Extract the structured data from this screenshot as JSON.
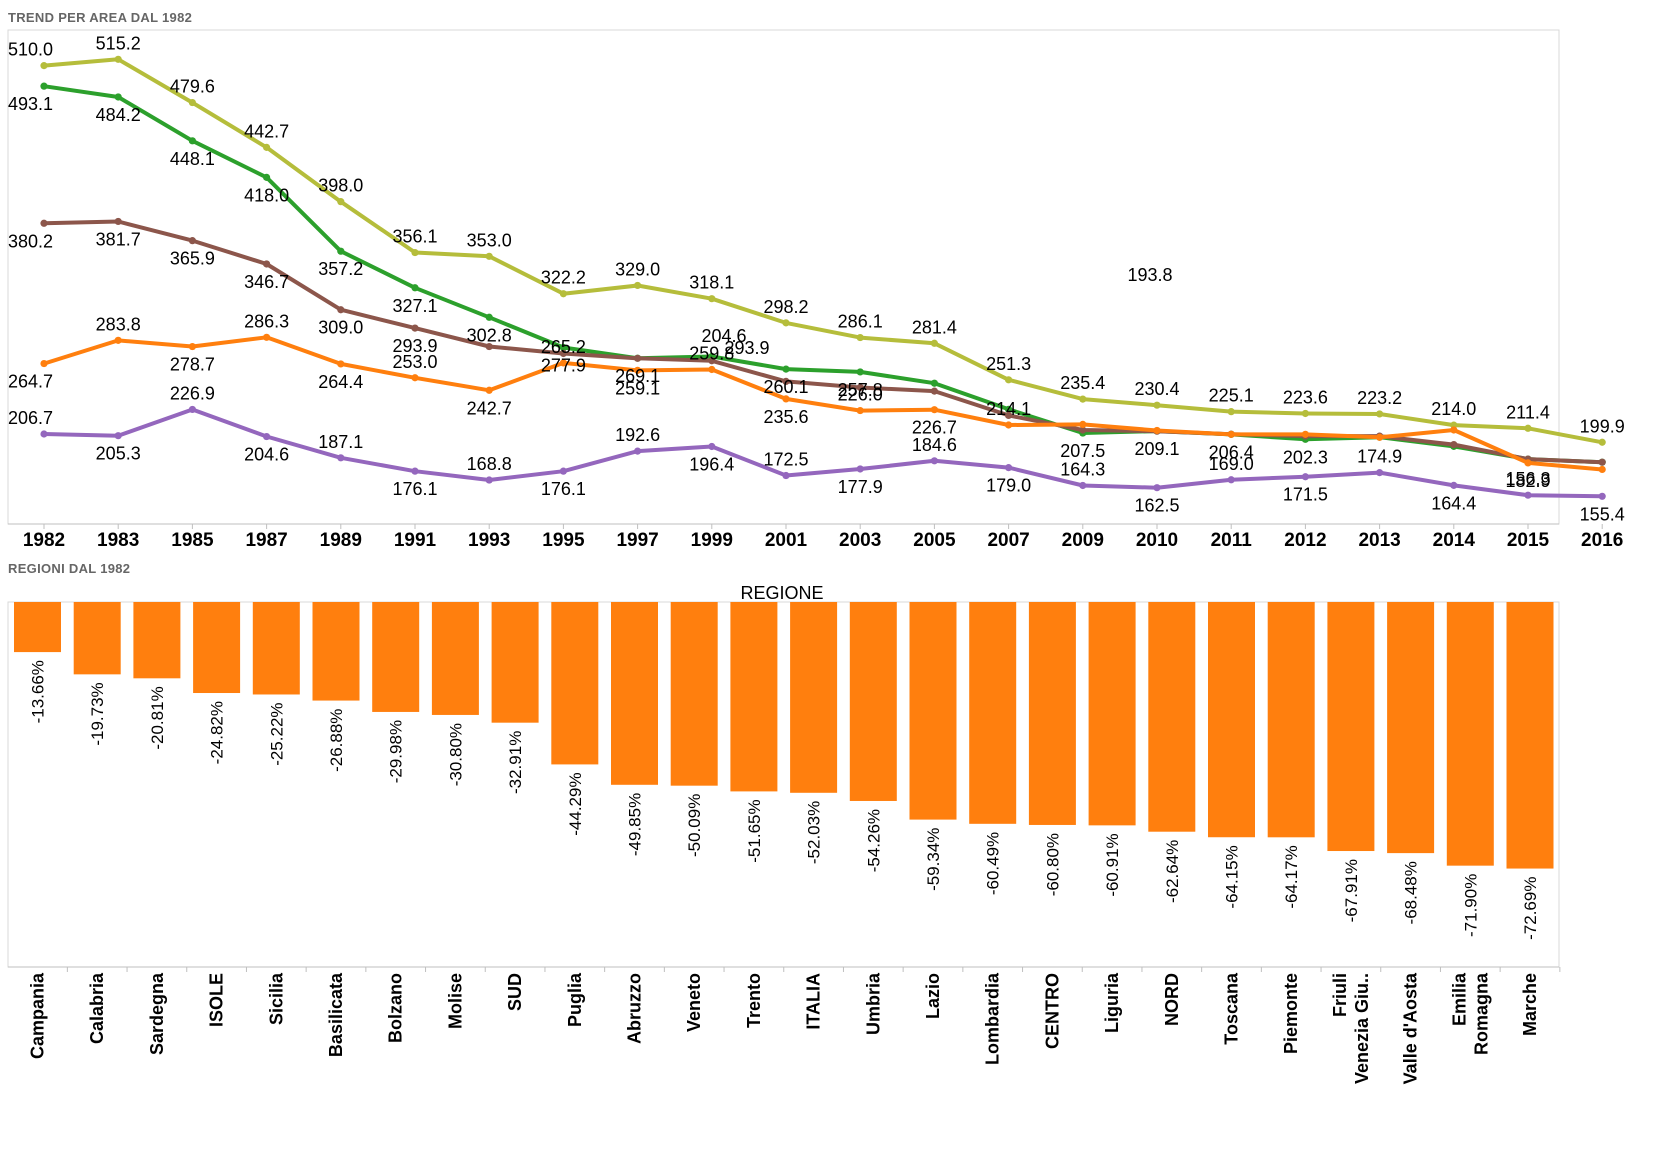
{
  "panels": {
    "top_title": "TREND PER AREA DAL 1982",
    "bottom_title": "REGIONI DAL 1982"
  },
  "chart_data": [
    {
      "type": "line",
      "title": "TREND PER AREA DAL 1982",
      "x": [
        "1982",
        "1983",
        "1985",
        "1987",
        "1989",
        "1991",
        "1993",
        "1995",
        "1997",
        "1999",
        "2001",
        "2003",
        "2005",
        "2007",
        "2009",
        "2010",
        "2011",
        "2012",
        "2013",
        "2014",
        "2015",
        "2016"
      ],
      "ylim": [
        140,
        530
      ],
      "grid": false,
      "legend": "none",
      "series": [
        {
          "color": "#b5bd3b",
          "values": [
            510.0,
            515.2,
            479.6,
            442.7,
            398.0,
            356.1,
            353.0,
            322.2,
            329.0,
            318.1,
            298.2,
            286.1,
            281.4,
            251.3,
            235.4,
            230.4,
            225.1,
            223.6,
            223.2,
            214.0,
            211.4,
            199.9
          ],
          "labels": [
            "510.0",
            "515.2",
            "479.6",
            "442.7",
            "398.0",
            "356.1",
            "353.0",
            "322.2",
            "329.0",
            "318.1",
            "298.2",
            "286.1",
            "281.4",
            "251.3",
            "235.4",
            "230.4",
            "225.1",
            "223.6",
            "223.2",
            "214.0",
            "211.4",
            "199.9"
          ]
        },
        {
          "color": "#2ca02c",
          "values": [
            493.1,
            484.2,
            448.1,
            418.0,
            357.2,
            327.1,
            302.8,
            277.9,
            269.1,
            270.5,
            260.1,
            257.8,
            248.5,
            227.0,
            207.5,
            209.1,
            206.4,
            202.3,
            204.1,
            196.5,
            186.0,
            183.5
          ],
          "labels": [
            "493.1",
            "484.2",
            "448.1",
            "418.0",
            "357.2",
            "327.1",
            "302.8",
            "277.9",
            "269.1",
            "",
            "260.1",
            "257.8",
            "",
            "",
            "207.5",
            "209.1",
            "206.4",
            "202.3",
            "",
            "",
            "",
            ""
          ]
        },
        {
          "color": "#8c564b",
          "values": [
            380.2,
            381.7,
            365.9,
            346.7,
            309.0,
            293.9,
            278.7,
            273.0,
            269.0,
            267.0,
            250.0,
            245.0,
            242.0,
            222.0,
            210.0,
            209.0,
            206.5,
            205.0,
            205.0,
            198.0,
            186.0,
            183.5
          ],
          "labels": [
            "380.2",
            "381.7",
            "365.9",
            "346.7",
            "309.0",
            "293.9",
            "",
            "",
            "",
            "",
            "",
            "",
            "",
            "",
            "",
            "",
            "",
            "",
            "",
            "",
            "",
            ""
          ]
        },
        {
          "color": "#ff7f0e",
          "values": [
            264.7,
            283.8,
            278.7,
            286.3,
            264.4,
            253.0,
            242.7,
            265.2,
            259.1,
            259.8,
            235.6,
            226.0,
            226.7,
            214.1,
            214.6,
            209.6,
            206.4,
            206.4,
            204.0,
            210.0,
            182.9,
            177.5
          ],
          "labels": [
            "264.7",
            "283.8",
            "278.7",
            "286.3",
            "264.4",
            "253.0",
            "242.7",
            "265.2",
            "259.1",
            "259.8",
            "235.6",
            "226.0",
            "226.7",
            "214.1",
            "",
            "",
            "",
            "",
            "",
            "",
            "182.9",
            ""
          ]
        },
        {
          "color": "#9467bd",
          "values": [
            206.7,
            205.3,
            226.9,
            204.6,
            187.1,
            176.1,
            168.8,
            176.1,
            192.6,
            196.4,
            172.5,
            177.9,
            184.6,
            179.0,
            164.3,
            162.5,
            169.0,
            171.5,
            174.9,
            164.4,
            156.3,
            155.4
          ],
          "labels": [
            "206.7",
            "205.3",
            "226.9",
            "204.6",
            "187.1",
            "176.1",
            "168.8",
            "176.1",
            "192.6",
            "196.4",
            "172.5",
            "177.9",
            "184.6",
            "179.0",
            "164.3",
            "162.5",
            "169.0",
            "171.5",
            "174.9",
            "164.4",
            "156.3",
            "155.4"
          ]
        }
      ],
      "annotations": [
        "204.6",
        "293.9",
        "193.8"
      ]
    },
    {
      "type": "bar",
      "title": "REGIONE",
      "categories": [
        "Campania",
        "Calabria",
        "Sardegna",
        "ISOLE",
        "Sicilia",
        "Basilicata",
        "Bolzano",
        "Molise",
        "SUD",
        "Puglia",
        "Abruzzo",
        "Veneto",
        "Trento",
        "ITALIA",
        "Umbria",
        "Lazio",
        "Lombardia",
        "CENTRO",
        "Liguria",
        "NORD",
        "Toscana",
        "Piemonte",
        "Friuli Venezia Giu..",
        "Valle d'Aosta",
        "Emilia Romagna",
        "Marche"
      ],
      "values": [
        -13.66,
        -19.73,
        -20.81,
        -24.82,
        -25.22,
        -26.88,
        -29.98,
        -30.8,
        -32.91,
        -44.29,
        -49.85,
        -50.09,
        -51.65,
        -52.03,
        -54.26,
        -59.34,
        -60.49,
        -60.8,
        -60.91,
        -62.64,
        -64.15,
        -64.17,
        -67.91,
        -68.48,
        -71.9,
        -72.69
      ],
      "value_labels": [
        "-13.66%",
        "-19.73%",
        "-20.81%",
        "-24.82%",
        "-25.22%",
        "-26.88%",
        "-29.98%",
        "-30.80%",
        "-32.91%",
        "-44.29%",
        "-49.85%",
        "-50.09%",
        "-51.65%",
        "-52.03%",
        "-54.26%",
        "-59.34%",
        "-60.49%",
        "-60.80%",
        "-60.91%",
        "-62.64%",
        "-64.15%",
        "-64.17%",
        "-67.91%",
        "-68.48%",
        "-71.90%",
        "-72.69%"
      ],
      "ylim": [
        -100,
        0
      ],
      "color": "#ff7f0e",
      "grid": false,
      "legend": "none"
    }
  ]
}
